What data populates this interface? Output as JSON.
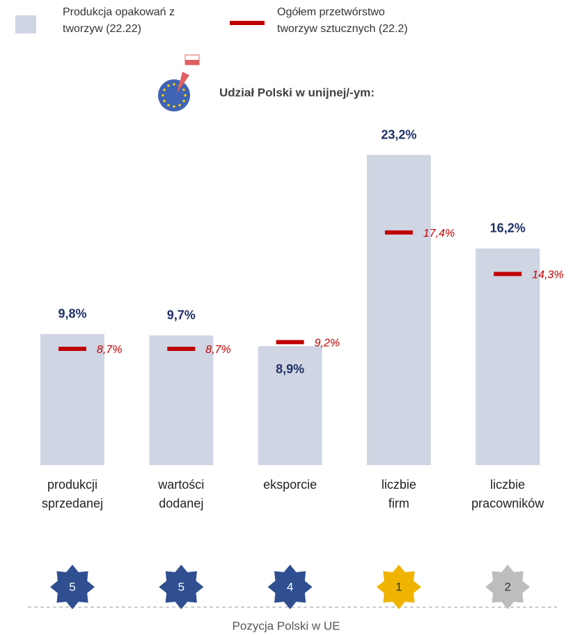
{
  "chart_data": {
    "type": "bar",
    "title": "Udział Polski w unijnej/-ym:",
    "categories": [
      [
        "produkcji",
        "sprzedanej"
      ],
      [
        "wartości",
        "dodanej"
      ],
      [
        "eksporcie"
      ],
      [
        "liczbie",
        "firm"
      ],
      [
        "liczbie",
        "pracowników"
      ]
    ],
    "series": [
      {
        "name": "Produkcja opakowań z tworzyw (22.22)",
        "color": "#cfd5e3",
        "values": [
          9.8,
          9.7,
          8.9,
          23.2,
          16.2
        ],
        "value_labels": [
          "9,8%",
          "9,7%",
          "8,9%",
          "23,2%",
          "16,2%"
        ]
      },
      {
        "name": "Ogółem przetwórstwo tworzyw sztucznych (22.2)",
        "color": "#c00000",
        "values": [
          8.7,
          8.7,
          9.2,
          17.4,
          14.3
        ],
        "value_labels": [
          "8,7%",
          "8,7%",
          "9,2%",
          "17,4%",
          "14,3%"
        ]
      }
    ],
    "ylim": [
      0,
      25
    ],
    "ranks": [
      5,
      5,
      4,
      1,
      2
    ],
    "rank_colors": [
      "#2f4f91",
      "#2f4f91",
      "#2f4f91",
      "#f0b400",
      "#bdbdbd"
    ],
    "rank_title": "Pozycja Polski w UE"
  }
}
